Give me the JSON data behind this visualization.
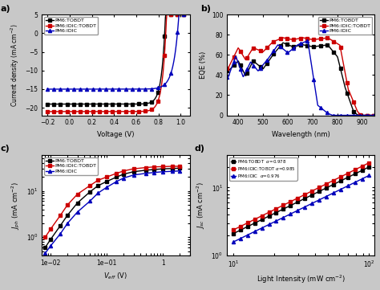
{
  "fig_bg": "#c8c8c8",
  "ax_bg": "#ffffff",
  "panel_a": {
    "label": "a)",
    "xlabel": "Voltage (V)",
    "ylabel": "Current density (mA cm$^{-2}$)",
    "xlim": [
      -0.25,
      1.08
    ],
    "ylim": [
      -22,
      5
    ],
    "xticks": [
      -0.2,
      0.0,
      0.2,
      0.4,
      0.6,
      0.8,
      1.0
    ],
    "yticks": [
      -20,
      -15,
      -10,
      -5,
      0,
      5
    ]
  },
  "panel_b": {
    "label": "b)",
    "xlabel": "Wavelength (nm)",
    "ylabel": "EQE (%)",
    "xlim": [
      355,
      950
    ],
    "ylim": [
      0,
      100
    ],
    "xticks": [
      400,
      500,
      600,
      700,
      800,
      900
    ],
    "yticks": [
      0,
      20,
      40,
      60,
      80,
      100
    ]
  },
  "panel_c": {
    "label": "c)",
    "xlabel": "$V_{eff}$ (V)",
    "ylabel": "$J_{ph}$ (mA cm$^{-2}$)"
  },
  "panel_d": {
    "label": "d)",
    "xlabel": "Light Intensity (mW cm$^{-2}$)",
    "ylabel": "$J_{sc}$ (mA cm$^{-2}$)"
  },
  "colors": {
    "black": "#000000",
    "red": "#cc0000",
    "blue": "#0000bb"
  },
  "labels": {
    "black": "PM6:TOBDT",
    "red": "PM6:IDIC:TOBDT",
    "blue": "PM6:IDIC"
  },
  "alpha_vals": {
    "black": "0.978",
    "red": "0.985",
    "blue": "0.976"
  }
}
